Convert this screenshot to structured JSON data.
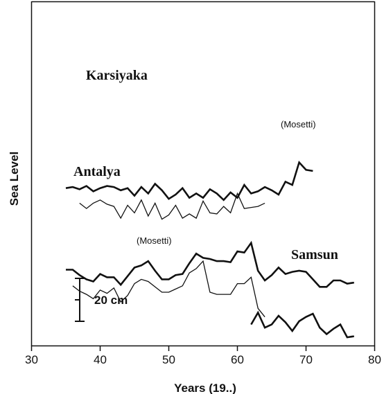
{
  "chart_data": {
    "type": "line",
    "xlabel": "Years (19..)",
    "ylabel": "Sea Level",
    "xlim": [
      30,
      80
    ],
    "xticks": [
      "30",
      "40",
      "50",
      "60",
      "70",
      "80"
    ],
    "yticks": false,
    "grid": false,
    "scale_bar": {
      "label": "20 cm",
      "length": 20
    },
    "annotations": [
      "(Mosetti)",
      "(Mosetti)"
    ],
    "series": [
      {
        "name": "Karsiyaka",
        "x": [
          35,
          36,
          37,
          38,
          39,
          40,
          41,
          42,
          43,
          44,
          45,
          46,
          47,
          48,
          49,
          50,
          51,
          52,
          53,
          54,
          55,
          56,
          57,
          58,
          59,
          60,
          61,
          62,
          63,
          64,
          65,
          66,
          67,
          68,
          69,
          70,
          71
        ],
        "values": [
          186,
          187,
          185,
          188,
          183,
          186,
          188,
          187,
          184,
          186,
          179,
          187,
          181,
          190,
          184,
          176,
          180,
          186,
          177,
          181,
          177,
          185,
          181,
          175,
          182,
          177,
          189,
          181,
          183,
          187,
          184,
          180,
          192,
          189,
          210,
          203,
          202
        ]
      },
      {
        "name": "Karsiyaka (Mosetti)",
        "x": [
          37,
          38,
          39,
          40,
          41,
          42,
          43,
          44,
          45,
          46,
          47,
          48,
          49,
          50,
          51,
          52,
          53,
          54,
          55,
          56,
          57,
          58,
          59,
          60,
          61,
          62,
          63,
          64
        ],
        "values": [
          172,
          167,
          172,
          175,
          171,
          169,
          158,
          170,
          163,
          175,
          160,
          172,
          157,
          161,
          170,
          158,
          162,
          158,
          174,
          163,
          162,
          169,
          163,
          181,
          167,
          168,
          169,
          172
        ]
      },
      {
        "name": "Antalya",
        "x": [
          35,
          36,
          37,
          38,
          39,
          40,
          41,
          42,
          43,
          44,
          45,
          46,
          47,
          48,
          49,
          50,
          51,
          52,
          53,
          54,
          55,
          56,
          57,
          58,
          59,
          60,
          61,
          62,
          63,
          64,
          65,
          66,
          67,
          68,
          69,
          70,
          71,
          72,
          73,
          74,
          75,
          76,
          77
        ],
        "values": [
          110,
          110,
          105,
          101,
          99,
          106,
          103,
          103,
          96,
          104,
          112,
          114,
          118,
          109,
          101,
          101,
          105,
          106,
          116,
          125,
          121,
          120,
          118,
          118,
          117,
          127,
          126,
          135,
          109,
          100,
          105,
          112,
          106,
          108,
          109,
          108,
          101,
          94,
          94,
          100,
          100,
          97,
          98
        ]
      },
      {
        "name": "Antalya (Mosetti)",
        "x": [
          36,
          37,
          38,
          39,
          40,
          41,
          42,
          43,
          44,
          45,
          46,
          47,
          48,
          49,
          50,
          51,
          52,
          53,
          54,
          55,
          56,
          57,
          58,
          59,
          60,
          61,
          62,
          63,
          64
        ],
        "values": [
          95,
          90,
          87,
          83,
          91,
          88,
          93,
          80,
          86,
          97,
          101,
          99,
          94,
          89,
          89,
          92,
          95,
          107,
          111,
          118,
          89,
          87,
          87,
          87,
          97,
          97,
          103,
          74,
          66
        ]
      },
      {
        "name": "Samsun",
        "x": [
          62,
          63,
          64,
          65,
          66,
          67,
          68,
          69,
          70,
          71,
          72,
          73,
          74,
          75,
          76,
          77
        ],
        "values": [
          59,
          70,
          56,
          59,
          67,
          61,
          53,
          62,
          66,
          69,
          56,
          50,
          55,
          59,
          47,
          48
        ]
      }
    ]
  },
  "labels": {
    "karsiyaka": "Karsiyaka",
    "antalya": "Antalya",
    "samsun": "Samsun",
    "mosetti_1": "(Mosetti)",
    "mosetti_2": "(Mosetti)"
  }
}
